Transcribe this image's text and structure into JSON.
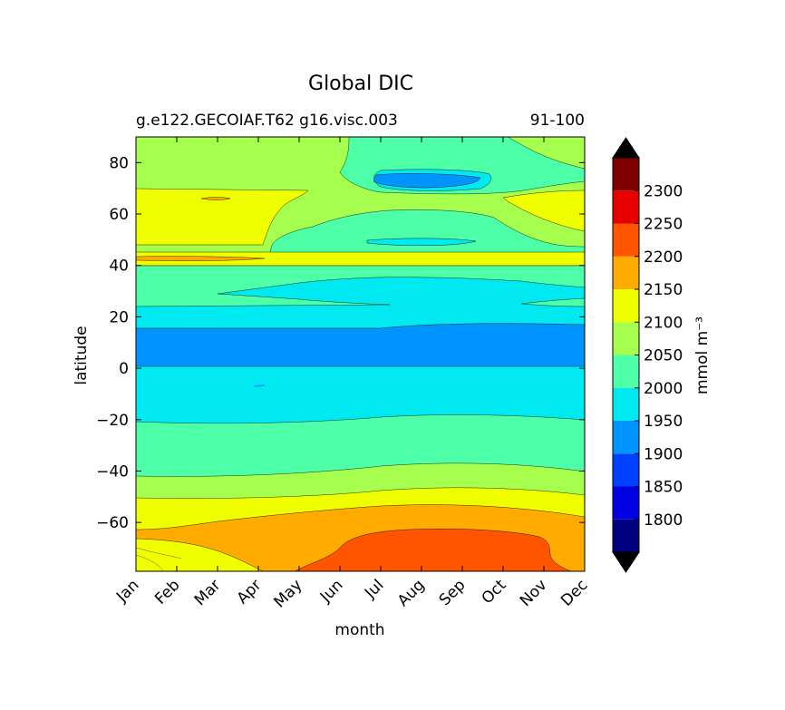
{
  "chart_data": {
    "type": "contour",
    "title": "Global DIC",
    "subtitle_left": "g.e122.GECOIAF.T62 g16.visc.003",
    "subtitle_right": "91-100",
    "xlabel": "month",
    "ylabel": "latitude",
    "x_categories": [
      "Jan",
      "Feb",
      "Mar",
      "Apr",
      "May",
      "Jun",
      "Jul",
      "Aug",
      "Sep",
      "Oct",
      "Nov",
      "Dec"
    ],
    "y_ticks": [
      80,
      60,
      40,
      20,
      0,
      -20,
      -40,
      -60
    ],
    "y_tick_labels": [
      "80",
      "60",
      "40",
      "20",
      "0",
      "−20",
      "−40",
      "−60"
    ],
    "ylim": [
      -79,
      90
    ],
    "colorbar": {
      "label": "mmol m⁻³",
      "levels": [
        1750,
        1800,
        1850,
        1900,
        1950,
        2000,
        2050,
        2100,
        2150,
        2200,
        2250,
        2300,
        2350
      ],
      "tick_labels": [
        "1800",
        "1850",
        "1900",
        "1950",
        "2000",
        "2050",
        "2100",
        "2150",
        "2200",
        "2250",
        "2300"
      ],
      "colors": [
        "#000080",
        "#0000e0",
        "#0040ff",
        "#0094ff",
        "#00e8f0",
        "#4dffa6",
        "#a6ff4d",
        "#f0ff00",
        "#ffab00",
        "#ff5500",
        "#e80000",
        "#800000"
      ],
      "extend_low_color": "#000000",
      "extend_high_color": "#000000"
    },
    "latitude_bands": [
      {
        "lat_range": [
          76,
          90
        ],
        "dic_approx": 2075,
        "note": "Jun-Oct 2025, core Jul-Sep 1925"
      },
      {
        "lat_range": [
          68,
          76
        ],
        "dic_approx": 2075
      },
      {
        "lat_range": [
          56,
          68
        ],
        "dic_approx": 2125,
        "note": "Jan-Mar and Nov-Dec; 2075 Apr-Oct"
      },
      {
        "lat_range": [
          46,
          56
        ],
        "dic_approx": 2075,
        "note": "Jun-Nov 2025"
      },
      {
        "lat_range": [
          41,
          46
        ],
        "dic_approx": 2125,
        "note": "thin 2175 line near 43"
      },
      {
        "lat_range": [
          30,
          41
        ],
        "dic_approx": 2025
      },
      {
        "lat_range": [
          16,
          30
        ],
        "dic_approx": 1975
      },
      {
        "lat_range": [
          1,
          16
        ],
        "dic_approx": 1925
      },
      {
        "lat_range": [
          -20,
          1
        ],
        "dic_approx": 1975
      },
      {
        "lat_range": [
          -42,
          -20
        ],
        "dic_approx": 2025
      },
      {
        "lat_range": [
          -50,
          -42
        ],
        "dic_approx": 2075
      },
      {
        "lat_range": [
          -63,
          -50
        ],
        "dic_approx": 2125
      },
      {
        "lat_range": [
          -79,
          -63
        ],
        "dic_approx": 2175,
        "note": "core 2225 Jun-Nov south of -63"
      }
    ]
  }
}
